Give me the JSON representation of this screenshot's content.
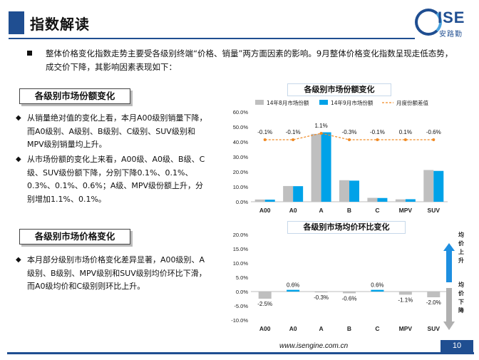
{
  "header": {
    "title": "指数解读",
    "logo_text": "ISE",
    "logo_sub": "安路勤"
  },
  "intro": {
    "text": "整体价格变化指数走势主要受各级别终端“价格、销量”两方面因素的影响。9月整体价格变化指数呈现走低态势，成交价下降，其影响因素表现如下："
  },
  "section1": {
    "title": "各级别市场份额变化",
    "bullets": [
      "从销量绝对值的变化上看，本月A00级别销量下降，而A0级别、A级别、B级别、C级别、SUV级别和MPV级别销量均上升。",
      "从市场份额的变化上来看，A00级、A0级、B级、C级、SUV级份额下降，分别下降0.1%、0.1%、0.3%、0.1%、0.6%；A级、MPV级份额上升，分别增加1.1%、0.1%。"
    ]
  },
  "section2": {
    "title": "各级别市场价格变化",
    "bullets": [
      "本月部分级别市场价格变化差异显著，A00级别、A级别、B级别、MPV级别和SUV级别均价环比下滑，而A0级均价和C级别则环比上升。"
    ]
  },
  "chart1_title": "各级别市场份额变化",
  "chart2_title": "各级别市场均价环比变化",
  "arrow_up_label": "均价上升",
  "arrow_down_label": "均价下降",
  "footer": {
    "url": "www.isengine.com.cn",
    "page": "10"
  },
  "colors": {
    "brand": "#1f4e91",
    "aug_bar": "#bfbfbf",
    "sep_bar": "#00a2e8",
    "line": "#f08a24"
  },
  "chart_data": [
    {
      "type": "bar",
      "title": "各级别市场份额变化",
      "categories": [
        "A00",
        "A0",
        "A",
        "B",
        "C",
        "MPV",
        "SUV"
      ],
      "series": [
        {
          "name": "14年8月市场份额",
          "values": [
            1.5,
            10.5,
            45.3,
            14.4,
            2.6,
            1.6,
            21.2
          ]
        },
        {
          "name": "14年9月市场份额",
          "values": [
            1.4,
            10.4,
            46.4,
            14.1,
            2.5,
            1.7,
            20.6
          ]
        },
        {
          "name": "月度份额差值",
          "kind": "line",
          "labels": [
            "-0.1%",
            "-0.1%",
            "1.1%",
            "-0.3%",
            "-0.1%",
            "0.1%",
            "-0.6%"
          ]
        }
      ],
      "ylim": [
        0,
        60
      ],
      "yticks": [
        "0.0%",
        "10.0%",
        "20.0%",
        "30.0%",
        "40.0%",
        "50.0%",
        "60.0%"
      ],
      "legend": "top"
    },
    {
      "type": "bar",
      "title": "各级别市场均价环比变化",
      "categories": [
        "A00",
        "A0",
        "A",
        "B",
        "C",
        "MPV",
        "SUV"
      ],
      "values": [
        -2.5,
        0.6,
        -0.3,
        -0.6,
        0.6,
        -1.1,
        -2.0
      ],
      "labels": [
        "-2.5%",
        "0.6%",
        "-0.3%",
        "-0.6%",
        "0.6%",
        "-1.1%",
        "-2.0%"
      ],
      "ylim": [
        -10,
        20
      ],
      "yticks": [
        "20.0%",
        "15.0%",
        "10.0%",
        "5.0%",
        "0.0%",
        "-5.0%",
        "-10.0%"
      ]
    }
  ]
}
